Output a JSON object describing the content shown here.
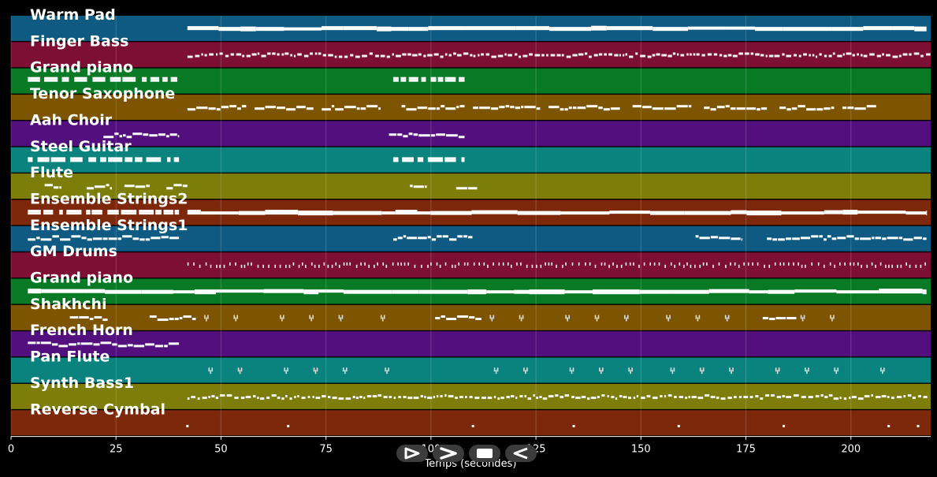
{
  "chart_data": {
    "type": "piano-roll",
    "title": "",
    "xlabel": "Temps (secondes)",
    "ylabel": "",
    "xlim": [
      0,
      219
    ],
    "x_ticks": [
      0,
      25,
      50,
      75,
      100,
      125,
      150,
      175,
      200
    ],
    "grid": true,
    "tracks": [
      {
        "name": "Warm Pad",
        "color": "#0e5a82",
        "segments": [
          [
            42,
            218,
            0.5,
            "sustain"
          ]
        ]
      },
      {
        "name": "Finger Bass",
        "color": "#7d0f35",
        "segments": [
          [
            42,
            218,
            0.5,
            "dense"
          ]
        ]
      },
      {
        "name": "Grand piano",
        "color": "#087a25",
        "segments": [
          [
            4,
            40,
            0.45,
            "chords"
          ],
          [
            91,
            108,
            0.45,
            "chords"
          ]
        ]
      },
      {
        "name": "Tenor Saxophone",
        "color": "#7d5500",
        "segments": [
          [
            42,
            56,
            0.5,
            "phrase"
          ],
          [
            58,
            72,
            0.5,
            "phrase"
          ],
          [
            74,
            88,
            0.5,
            "phrase"
          ],
          [
            93,
            108,
            0.5,
            "phrase"
          ],
          [
            110,
            126,
            0.5,
            "phrase"
          ],
          [
            128,
            145,
            0.5,
            "phrase"
          ],
          [
            148,
            162,
            0.5,
            "phrase"
          ],
          [
            165,
            180,
            0.5,
            "phrase"
          ],
          [
            183,
            196,
            0.5,
            "phrase"
          ],
          [
            198,
            206,
            0.5,
            "phrase"
          ]
        ]
      },
      {
        "name": "Aah Choir",
        "color": "#520f7d",
        "segments": [
          [
            22,
            40,
            0.55,
            "phrase"
          ],
          [
            90,
            108,
            0.55,
            "phrase"
          ]
        ]
      },
      {
        "name": "Steel Guitar",
        "color": "#0a827d",
        "segments": [
          [
            4,
            40,
            0.5,
            "chords"
          ],
          [
            91,
            108,
            0.5,
            "chords"
          ]
        ]
      },
      {
        "name": "Flute",
        "color": "#7d7d0a",
        "segments": [
          [
            8,
            12,
            0.5,
            "phrase"
          ],
          [
            18,
            24,
            0.5,
            "phrase"
          ],
          [
            27,
            33,
            0.5,
            "phrase"
          ],
          [
            37,
            42,
            0.5,
            "phrase"
          ],
          [
            95,
            99,
            0.5,
            "phrase"
          ],
          [
            106,
            111,
            0.5,
            "phrase"
          ]
        ]
      },
      {
        "name": "Ensemble Strings2",
        "color": "#7d280a",
        "segments": [
          [
            4,
            40,
            0.5,
            "chords"
          ],
          [
            42,
            218,
            0.5,
            "sustain"
          ]
        ]
      },
      {
        "name": "Ensemble Strings1",
        "color": "#0e5a82",
        "segments": [
          [
            4,
            40,
            0.45,
            "phrase"
          ],
          [
            91,
            110,
            0.45,
            "phrase"
          ],
          [
            163,
            174,
            0.45,
            "phrase"
          ],
          [
            180,
            218,
            0.45,
            "phrase"
          ]
        ]
      },
      {
        "name": "GM Drums",
        "color": "#7d0f35",
        "segments": [
          [
            42,
            218,
            0.5,
            "hits"
          ]
        ]
      },
      {
        "name": "Grand piano",
        "color": "#087a25",
        "segments": [
          [
            4,
            218,
            0.5,
            "sustain"
          ]
        ]
      },
      {
        "name": "Shakhchi",
        "color": "#7d5500",
        "segments": [
          [
            14,
            23,
            0.5,
            "phrase"
          ],
          [
            33,
            44,
            0.5,
            "phrase"
          ],
          [
            101,
            112,
            0.5,
            "phrase"
          ],
          [
            179,
            187,
            0.5,
            "phrase"
          ]
        ]
      },
      {
        "name": "French Horn",
        "color": "#520f7d",
        "segments": [
          [
            4,
            40,
            0.5,
            "phrase"
          ]
        ]
      },
      {
        "name": "Pan Flute",
        "color": "#0a827d",
        "segments": []
      },
      {
        "name": "Synth Bass1",
        "color": "#7d7d0a",
        "segments": [
          [
            42,
            218,
            0.5,
            "dense"
          ]
        ]
      },
      {
        "name": "Reverse Cymbal",
        "color": "#7d280a",
        "segments": []
      }
    ],
    "accents": [
      {
        "track": 11,
        "x": [
          46,
          53,
          64,
          71,
          78,
          88,
          114,
          121,
          132,
          139,
          146,
          156,
          163,
          170,
          188,
          195
        ]
      },
      {
        "track": 13,
        "x": [
          47,
          54,
          65,
          72,
          79,
          89,
          115,
          122,
          133,
          140,
          147,
          157,
          164,
          171,
          182,
          189,
          196,
          207
        ]
      },
      {
        "track": 15,
        "x": [
          42,
          66,
          110,
          134,
          159,
          184,
          209,
          216
        ]
      }
    ]
  },
  "controls": {
    "play_icon": "play-icon",
    "forward_icon": "forward-icon",
    "stop_icon": "stop-icon",
    "rewind_icon": "rewind-icon"
  }
}
